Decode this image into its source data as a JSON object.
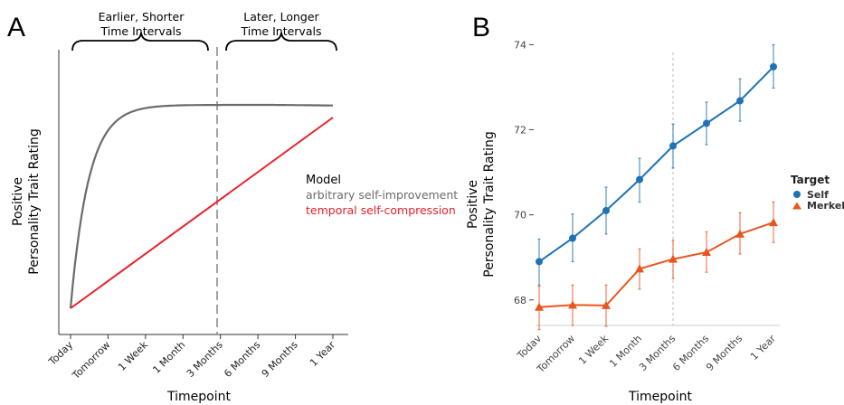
{
  "chart_data": [
    {
      "panel": "A",
      "type": "line",
      "categories": [
        "Today",
        "Tomorrow",
        "1 Week",
        "1 Month",
        "3 Months",
        "6 Months",
        "9 Months",
        "1 Year"
      ],
      "xlabel": "Timepoint",
      "ylabel_lines": [
        "Positive",
        "Personality Trait Rating"
      ],
      "divider_at": "3 Months",
      "annotations": [
        {
          "lines": [
            "Earlier, Shorter",
            "Time Intervals"
          ]
        },
        {
          "lines": [
            "Later, Longer",
            "Time Intervals"
          ]
        }
      ],
      "legend": {
        "title": "Model",
        "placement": "right",
        "items": [
          {
            "name": "arbitrary self-improvement",
            "color": "#6b6b6b"
          },
          {
            "name": "temporal self-compression",
            "color": "#e8202a"
          }
        ]
      },
      "series": [
        {
          "name": "arbitrary self-improvement",
          "color": "#6b6b6b",
          "shape": "saturating",
          "values": [
            0.0,
            0.84,
            0.95,
            0.98,
            1.0,
            1.0,
            1.0,
            1.0
          ]
        },
        {
          "name": "temporal self-compression",
          "color": "#e8202a",
          "shape": "linear",
          "values": [
            0.0,
            0.143,
            0.286,
            0.429,
            0.571,
            0.714,
            0.857,
            1.0
          ]
        }
      ]
    },
    {
      "panel": "B",
      "type": "line",
      "categories": [
        "Today",
        "Tomorrow",
        "1 Week",
        "1 Month",
        "3 Months",
        "6 Months",
        "9 Months",
        "1 Year"
      ],
      "tick_labels_x": [
        "Todav",
        "Tomorrow",
        "1 Week",
        "1 Month",
        "3 Months",
        "6 Months",
        "9 Months",
        "1 Year"
      ],
      "xlabel": "Timepoint",
      "ylabel_lines": [
        "Positive",
        "Personality Trait Rating"
      ],
      "ylim": [
        67.4,
        74.2
      ],
      "yticks": [
        68,
        70,
        72,
        74
      ],
      "grid": false,
      "divider_at": "3 Months",
      "legend": {
        "title": "Target",
        "placement": "right"
      },
      "series": [
        {
          "name": "Self",
          "color": "#1f72b5",
          "marker": "circle",
          "values": [
            68.9,
            69.45,
            70.1,
            70.83,
            71.62,
            72.15,
            72.68,
            73.48
          ],
          "err_low": [
            68.35,
            68.9,
            69.55,
            70.3,
            71.1,
            71.65,
            72.2,
            72.98
          ],
          "err_high": [
            69.43,
            70.02,
            70.65,
            71.33,
            72.13,
            72.65,
            73.2,
            74.0
          ]
        },
        {
          "name": "Merkel",
          "color": "#e8561f",
          "marker": "triangle",
          "values": [
            67.83,
            67.88,
            67.87,
            68.73,
            68.96,
            69.12,
            69.55,
            69.82
          ],
          "err_low": [
            67.3,
            67.4,
            67.38,
            68.25,
            68.5,
            68.65,
            69.08,
            69.35
          ],
          "err_high": [
            68.32,
            68.35,
            68.35,
            69.2,
            69.4,
            69.6,
            70.05,
            70.3
          ]
        }
      ]
    }
  ]
}
